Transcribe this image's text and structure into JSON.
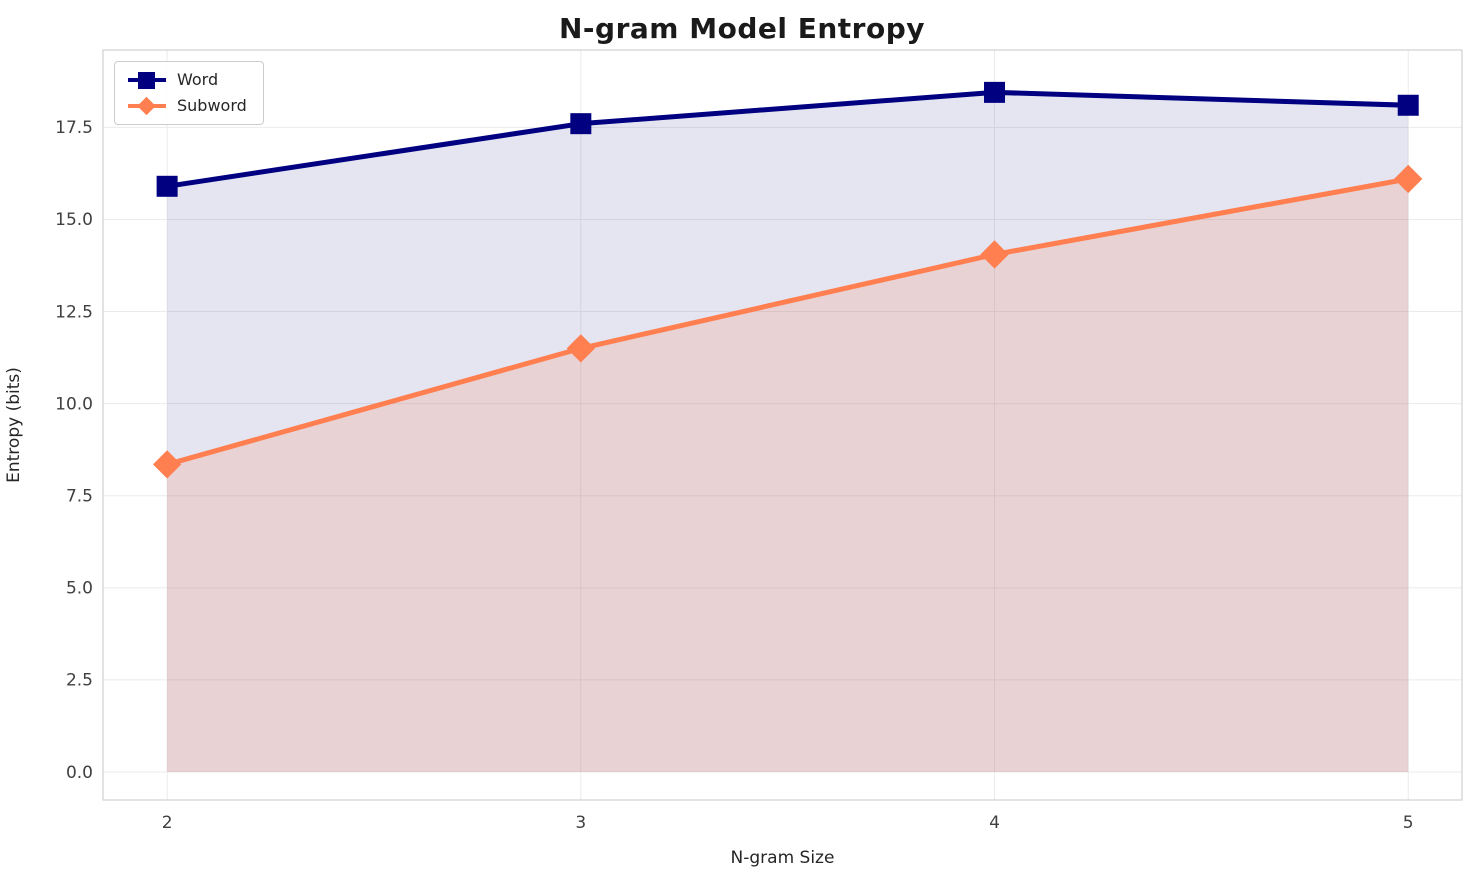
{
  "chart_data": {
    "type": "line",
    "title": "N-gram Model Entropy",
    "xlabel": "N-gram Size",
    "ylabel": "Entropy (bits)",
    "x": [
      2,
      3,
      4,
      5
    ],
    "series": [
      {
        "name": "Word",
        "color": "#000080",
        "marker": "square",
        "values": [
          15.9,
          17.6,
          18.45,
          18.1
        ],
        "fill_opacity": 0.1
      },
      {
        "name": "Subword",
        "color": "#FF7F50",
        "marker": "diamond",
        "values": [
          8.35,
          11.5,
          14.05,
          16.1
        ],
        "fill_opacity": 0.18
      }
    ],
    "fill_to_zero": true,
    "grid": true,
    "legend_position": "upper left",
    "x_ticks": {
      "values": [
        2,
        3,
        4,
        5
      ],
      "labels": [
        "2",
        "3",
        "4",
        "5"
      ]
    },
    "y_ticks": {
      "values": [
        0,
        2.5,
        5,
        7.5,
        10,
        12.5,
        15,
        17.5
      ],
      "labels": [
        "0.0",
        "2.5",
        "5.0",
        "7.5",
        "10.0",
        "12.5",
        "15.0",
        "17.5"
      ]
    },
    "xlim": [
      1.845,
      5.13
    ],
    "ylim": [
      -0.76,
      19.6
    ]
  }
}
